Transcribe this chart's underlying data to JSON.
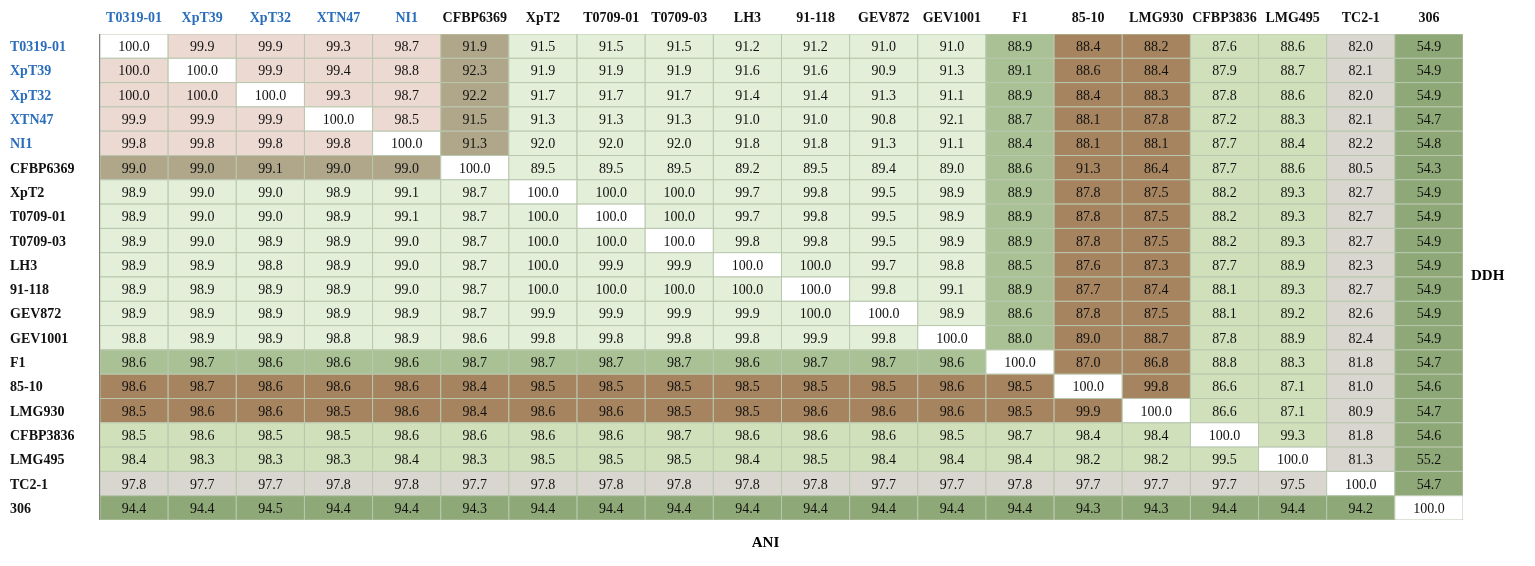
{
  "chart_data": {
    "type": "heatmap",
    "xlabel": "ANI",
    "y2label": "DDH",
    "categories": [
      "T0319-01",
      "XpT39",
      "XpT32",
      "XTN47",
      "NI1",
      "CFBP6369",
      "XpT2",
      "T0709-01",
      "T0709-03",
      "LH3",
      "91-118",
      "GEV872",
      "GEV1001",
      "F1",
      "85-10",
      "LMG930",
      "CFBP3836",
      "LMG495",
      "TC2-1",
      "306"
    ],
    "y_categories": [
      "T0319-01",
      "XpT39",
      "XpT32",
      "XTN47",
      "NI1",
      "CFBP6369",
      "XpT2",
      "T0709-01",
      "T0709-03",
      "LH3",
      "91-118",
      "GEV872",
      "GEV1001",
      "F1",
      "85-10",
      "LMG930",
      "CFBP3836",
      "LMG495",
      "TC2-1",
      "306"
    ],
    "data_labels": true,
    "cells": [
      [
        100.0,
        99.9,
        99.9,
        99.3,
        98.7,
        91.9,
        91.5,
        91.5,
        91.5,
        91.2,
        91.2,
        91.0,
        91.0,
        88.9,
        88.4,
        88.2,
        87.6,
        88.6,
        82.0,
        54.9
      ],
      [
        100.0,
        100.0,
        99.9,
        99.4,
        98.8,
        92.3,
        91.9,
        91.9,
        91.9,
        91.6,
        91.6,
        90.9,
        91.3,
        89.1,
        88.6,
        88.4,
        87.9,
        88.7,
        82.1,
        54.9
      ],
      [
        100.0,
        100.0,
        100.0,
        99.3,
        98.7,
        92.2,
        91.7,
        91.7,
        91.7,
        91.4,
        91.4,
        91.3,
        91.1,
        88.9,
        88.4,
        88.3,
        87.8,
        88.6,
        82.0,
        54.9
      ],
      [
        99.9,
        99.9,
        99.9,
        100.0,
        98.5,
        91.5,
        91.3,
        91.3,
        91.3,
        91.0,
        91.0,
        90.8,
        92.1,
        88.7,
        88.1,
        87.8,
        87.2,
        88.3,
        82.1,
        54.7
      ],
      [
        99.8,
        99.8,
        99.8,
        99.8,
        100.0,
        91.3,
        92.0,
        92.0,
        92.0,
        91.8,
        91.8,
        91.3,
        91.1,
        88.4,
        88.1,
        88.1,
        87.7,
        88.4,
        82.2,
        54.8
      ],
      [
        99.0,
        99.0,
        99.1,
        99.0,
        99.0,
        100.0,
        89.5,
        89.5,
        89.5,
        89.2,
        89.5,
        89.4,
        89.0,
        88.6,
        91.3,
        86.4,
        87.7,
        88.6,
        80.5,
        54.3
      ],
      [
        98.9,
        99.0,
        99.0,
        98.9,
        99.1,
        98.7,
        100.0,
        100.0,
        100.0,
        99.7,
        99.8,
        99.5,
        98.9,
        88.9,
        87.8,
        87.5,
        88.2,
        89.3,
        82.7,
        54.9
      ],
      [
        98.9,
        99.0,
        99.0,
        98.9,
        99.1,
        98.7,
        100.0,
        100.0,
        100.0,
        99.7,
        99.8,
        99.5,
        98.9,
        88.9,
        87.8,
        87.5,
        88.2,
        89.3,
        82.7,
        54.9
      ],
      [
        98.9,
        99.0,
        98.9,
        98.9,
        99.0,
        98.7,
        100.0,
        100.0,
        100.0,
        99.8,
        99.8,
        99.5,
        98.9,
        88.9,
        87.8,
        87.5,
        88.2,
        89.3,
        82.7,
        54.9
      ],
      [
        98.9,
        98.9,
        98.8,
        98.9,
        99.0,
        98.7,
        100.0,
        99.9,
        99.9,
        100.0,
        100.0,
        99.7,
        98.8,
        88.5,
        87.6,
        87.3,
        87.7,
        88.9,
        82.3,
        54.9
      ],
      [
        98.9,
        98.9,
        98.9,
        98.9,
        99.0,
        98.7,
        100.0,
        100.0,
        100.0,
        100.0,
        100.0,
        99.8,
        99.1,
        88.9,
        87.7,
        87.4,
        88.1,
        89.3,
        82.7,
        54.9
      ],
      [
        98.9,
        98.9,
        98.9,
        98.9,
        98.9,
        98.7,
        99.9,
        99.9,
        99.9,
        99.9,
        100.0,
        100.0,
        98.9,
        88.6,
        87.8,
        87.5,
        88.1,
        89.2,
        82.6,
        54.9
      ],
      [
        98.8,
        98.9,
        98.9,
        98.8,
        98.9,
        98.6,
        99.8,
        99.8,
        99.8,
        99.8,
        99.9,
        99.8,
        100.0,
        88.0,
        89.0,
        88.7,
        87.8,
        88.9,
        82.4,
        54.9
      ],
      [
        98.6,
        98.7,
        98.6,
        98.6,
        98.6,
        98.7,
        98.7,
        98.7,
        98.7,
        98.6,
        98.7,
        98.7,
        98.6,
        100.0,
        87.0,
        86.8,
        88.8,
        88.3,
        81.8,
        54.7
      ],
      [
        98.6,
        98.7,
        98.6,
        98.6,
        98.6,
        98.4,
        98.5,
        98.5,
        98.5,
        98.5,
        98.5,
        98.5,
        98.6,
        98.5,
        100.0,
        99.8,
        86.6,
        87.1,
        81.0,
        54.6
      ],
      [
        98.5,
        98.6,
        98.6,
        98.5,
        98.6,
        98.4,
        98.6,
        98.6,
        98.5,
        98.5,
        98.6,
        98.6,
        98.6,
        98.5,
        99.9,
        100.0,
        86.6,
        87.1,
        80.9,
        54.7
      ],
      [
        98.5,
        98.6,
        98.5,
        98.5,
        98.6,
        98.6,
        98.6,
        98.6,
        98.7,
        98.6,
        98.6,
        98.6,
        98.5,
        98.7,
        98.4,
        98.4,
        100.0,
        99.3,
        81.8,
        54.6
      ],
      [
        98.4,
        98.3,
        98.3,
        98.3,
        98.4,
        98.3,
        98.5,
        98.5,
        98.5,
        98.4,
        98.5,
        98.4,
        98.4,
        98.4,
        98.2,
        98.2,
        99.5,
        100.0,
        81.3,
        55.2
      ],
      [
        97.8,
        97.7,
        97.7,
        97.8,
        97.8,
        97.7,
        97.8,
        97.8,
        97.8,
        97.8,
        97.8,
        97.7,
        97.7,
        97.8,
        97.7,
        97.7,
        97.7,
        97.5,
        100.0,
        54.7
      ],
      [
        94.4,
        94.4,
        94.5,
        94.4,
        94.4,
        94.3,
        94.4,
        94.4,
        94.4,
        94.4,
        94.4,
        94.4,
        94.4,
        94.4,
        94.3,
        94.3,
        94.4,
        94.4,
        94.2,
        100.0
      ]
    ],
    "cell_labels": [
      [
        "100.0",
        "99.9",
        "99.9",
        "99.3",
        "98.7",
        "91.9",
        "91.5",
        "91.5",
        "91.5",
        "91.2",
        "91.2",
        "91.0",
        "91.0",
        "88.9",
        "88.4",
        "88.2",
        "87.6",
        "88.6",
        "82.0",
        "54.9"
      ],
      [
        "100.0",
        "100.0",
        "99.9",
        "99.4",
        "98.8",
        "92.3",
        "91.9",
        "91.9",
        "91.9",
        "91.6",
        "91.6",
        "90.9",
        "91.3",
        "89.1",
        "88.6",
        "88.4",
        "87.9",
        "88.7",
        "82.1",
        "54.9"
      ],
      [
        "100.0",
        "100.0",
        "100.0",
        "99.3",
        "98.7",
        "92.2",
        "91.7",
        "91.7",
        "91.7",
        "91.4",
        "91.4",
        "91.3",
        "91.1",
        "88.9",
        "88.4",
        "88.3",
        "87.8",
        "88.6",
        "82.0",
        "54.9"
      ],
      [
        "99.9",
        "99.9",
        "99.9",
        "100.0",
        "98.5",
        "91.5",
        "91.3",
        "91.3",
        "91.3",
        "91.0",
        "91.0",
        "90.8",
        "92.1",
        "88.7",
        "88.1",
        "87.8",
        "87.2",
        "88.3",
        "82.1",
        "54.7"
      ],
      [
        "99.8",
        "99.8",
        "99.8",
        "99.8",
        "100.0",
        "91.3",
        "92.0",
        "92.0",
        "92.0",
        "91.8",
        "91.8",
        "91.3",
        "91.1",
        "88.4",
        "88.1",
        "88.1",
        "87.7",
        "88.4",
        "82.2",
        "54.8"
      ],
      [
        "99.0",
        "99.0",
        "99.1",
        "99.0",
        "99.0",
        "100.0",
        "89.5",
        "89.5",
        "89.5",
        "89.2",
        "89.5",
        "89.4",
        "89.0",
        "88.6",
        "91.3",
        "86.4",
        "87.7",
        "88.6",
        "80.5",
        "54.3"
      ],
      [
        "98.9",
        "99.0",
        "99.0",
        "98.9",
        "99.1",
        "98.7",
        "100.0",
        "100.0",
        "100.0",
        "99.7",
        "99.8",
        "99.5",
        "98.9",
        "88.9",
        "87.8",
        "87.5",
        "88.2",
        "89.3",
        "82.7",
        "54.9"
      ],
      [
        "98.9",
        "99.0",
        "99.0",
        "98.9",
        "99.1",
        "98.7",
        "100.0",
        "100.0",
        "100.0",
        "99.7",
        "99.8",
        "99.5",
        "98.9",
        "88.9",
        "87.8",
        "87.5",
        "88.2",
        "89.3",
        "82.7",
        "54.9"
      ],
      [
        "98.9",
        "99.0",
        "98.9",
        "98.9",
        "99.0",
        "98.7",
        "100.0",
        "100.0",
        "100.0",
        "99.8",
        "99.8",
        "99.5",
        "98.9",
        "88.9",
        "87.8",
        "87.5",
        "88.2",
        "89.3",
        "82.7",
        "54.9"
      ],
      [
        "98.9",
        "98.9",
        "98.8",
        "98.9",
        "99.0",
        "98.7",
        "100.0",
        "99.9",
        "99.9",
        "100.0",
        "100.0",
        "99.7",
        "98.8",
        "88.5",
        "87.6",
        "87.3",
        "87.7",
        "88.9",
        "82.3",
        "54.9"
      ],
      [
        "98.9",
        "98.9",
        "98.9",
        "98.9",
        "99.0",
        "98.7",
        "100.0",
        "100.0",
        "100.0",
        "100.0",
        "100.0",
        "99.8",
        "99.1",
        "88.9",
        "87.7",
        "87.4",
        "88.1",
        "89.3",
        "82.7",
        "54.9"
      ],
      [
        "98.9",
        "98.9",
        "98.9",
        "98.9",
        "98.9",
        "98.7",
        "99.9",
        "99.9",
        "99.9",
        "99.9",
        "100.0",
        "100.0",
        "98.9",
        "88.6",
        "87.8",
        "87.5",
        "88.1",
        "89.2",
        "82.6",
        "54.9"
      ],
      [
        "98.8",
        "98.9",
        "98.9",
        "98.8",
        "98.9",
        "98.6",
        "99.8",
        "99.8",
        "99.8",
        "99.8",
        "99.9",
        "99.8",
        "100.0",
        "88.0",
        "89.0",
        "88.7",
        "87.8",
        "88.9",
        "82.4",
        "54.9"
      ],
      [
        "98.6",
        "98.7",
        "98.6",
        "98.6",
        "98.6",
        "98.7",
        "98.7",
        "98.7",
        "98.7",
        "98.6",
        "98.7",
        "98.7",
        "98.6",
        "100.0",
        "87.0",
        "86.8",
        "88.8",
        "88.3",
        "81.8",
        "54.7"
      ],
      [
        "98.6",
        "98.7",
        "98.6",
        "98.6",
        "98.6",
        "98.4",
        "98.5",
        "98.5",
        "98.5",
        "98.5",
        "98.5",
        "98.5",
        "98.6",
        "98.5",
        "100.0",
        "99.8",
        "86.6",
        "87.1",
        "81.0",
        "54.6"
      ],
      [
        "98.5",
        "98.6",
        "98.6",
        "98.5",
        "98.6",
        "98.4",
        "98.6",
        "98.6",
        "98.5",
        "98.5",
        "98.6",
        "98.6",
        "98.6",
        "98.5",
        "99.9",
        "100.0",
        "86.6",
        "87.1",
        "80.9",
        "54.7"
      ],
      [
        "98.5",
        "98.6",
        "98.5",
        "98.5",
        "98.6",
        "98.6",
        "98.6",
        "98.6",
        "98.7",
        "98.6",
        "98.6",
        "98.6",
        "98.5",
        "98.7",
        "98.4",
        "98.4",
        "100.0",
        "99.3",
        "81.8",
        "54.6"
      ],
      [
        "98.4",
        "98.3",
        "98.3",
        "98.3",
        "98.4",
        "98.3",
        "98.5",
        "98.5",
        "98.5",
        "98.4",
        "98.5",
        "98.4",
        "98.4",
        "98.4",
        "98.2",
        "98.2",
        "99.5",
        "100.0",
        "81.3",
        "55.2"
      ],
      [
        "97.8",
        "97.7",
        "97.7",
        "97.8",
        "97.8",
        "97.7",
        "97.8",
        "97.8",
        "97.8",
        "97.8",
        "97.8",
        "97.7",
        "97.7",
        "97.8",
        "97.7",
        "97.7",
        "97.7",
        "97.5",
        "100.0",
        "54.7"
      ],
      [
        "94.4",
        "94.4",
        "94.5",
        "94.4",
        "94.4",
        "94.3",
        "94.4",
        "94.4",
        "94.4",
        "94.4",
        "94.4",
        "94.4",
        "94.4",
        "94.4",
        "94.3",
        "94.3",
        "94.4",
        "94.4",
        "94.2",
        "100.0"
      ]
    ],
    "colors": [
      [
        "#ffffff",
        "#ecd9d1",
        "#ecd9d1",
        "#ecd9d1",
        "#ecd9d1",
        "#b0a78a",
        "#e4efd9",
        "#e4efd9",
        "#e4efd9",
        "#e4efd9",
        "#e4efd9",
        "#e4efd9",
        "#e4efd9",
        "#a9c194",
        "#a6845f",
        "#a6845f",
        "#cfe0bb",
        "#cfe0bb",
        "#d9d6cf",
        "#8fa877"
      ],
      [
        "#ecd9d1",
        "#ffffff",
        "#ecd9d1",
        "#ecd9d1",
        "#ecd9d1",
        "#b0a78a",
        "#e4efd9",
        "#e4efd9",
        "#e4efd9",
        "#e4efd9",
        "#e4efd9",
        "#e4efd9",
        "#e4efd9",
        "#a9c194",
        "#a6845f",
        "#a6845f",
        "#cfe0bb",
        "#cfe0bb",
        "#d9d6cf",
        "#8fa877"
      ],
      [
        "#ecd9d1",
        "#ecd9d1",
        "#ffffff",
        "#ecd9d1",
        "#ecd9d1",
        "#b0a78a",
        "#e4efd9",
        "#e4efd9",
        "#e4efd9",
        "#e4efd9",
        "#e4efd9",
        "#e4efd9",
        "#e4efd9",
        "#a9c194",
        "#a6845f",
        "#a6845f",
        "#cfe0bb",
        "#cfe0bb",
        "#d9d6cf",
        "#8fa877"
      ],
      [
        "#ecd9d1",
        "#ecd9d1",
        "#ecd9d1",
        "#ffffff",
        "#ecd9d1",
        "#b0a78a",
        "#e4efd9",
        "#e4efd9",
        "#e4efd9",
        "#e4efd9",
        "#e4efd9",
        "#e4efd9",
        "#e4efd9",
        "#a9c194",
        "#a6845f",
        "#a6845f",
        "#cfe0bb",
        "#cfe0bb",
        "#d9d6cf",
        "#8fa877"
      ],
      [
        "#ecd9d1",
        "#ecd9d1",
        "#ecd9d1",
        "#ecd9d1",
        "#ffffff",
        "#b0a78a",
        "#e4efd9",
        "#e4efd9",
        "#e4efd9",
        "#e4efd9",
        "#e4efd9",
        "#e4efd9",
        "#e4efd9",
        "#a9c194",
        "#a6845f",
        "#a6845f",
        "#cfe0bb",
        "#cfe0bb",
        "#d9d6cf",
        "#8fa877"
      ],
      [
        "#b0a78a",
        "#b0a78a",
        "#b0a78a",
        "#b0a78a",
        "#b0a78a",
        "#ffffff",
        "#e4efd9",
        "#e4efd9",
        "#e4efd9",
        "#e4efd9",
        "#e4efd9",
        "#e4efd9",
        "#e4efd9",
        "#a9c194",
        "#a6845f",
        "#a6845f",
        "#cfe0bb",
        "#cfe0bb",
        "#d9d6cf",
        "#8fa877"
      ],
      [
        "#e4efd9",
        "#e4efd9",
        "#e4efd9",
        "#e4efd9",
        "#e4efd9",
        "#e4efd9",
        "#ffffff",
        "#e4efd9",
        "#e4efd9",
        "#e4efd9",
        "#e4efd9",
        "#e4efd9",
        "#e4efd9",
        "#a9c194",
        "#a6845f",
        "#a6845f",
        "#cfe0bb",
        "#cfe0bb",
        "#d9d6cf",
        "#8fa877"
      ],
      [
        "#e4efd9",
        "#e4efd9",
        "#e4efd9",
        "#e4efd9",
        "#e4efd9",
        "#e4efd9",
        "#e4efd9",
        "#ffffff",
        "#e4efd9",
        "#e4efd9",
        "#e4efd9",
        "#e4efd9",
        "#e4efd9",
        "#a9c194",
        "#a6845f",
        "#a6845f",
        "#cfe0bb",
        "#cfe0bb",
        "#d9d6cf",
        "#8fa877"
      ],
      [
        "#e4efd9",
        "#e4efd9",
        "#e4efd9",
        "#e4efd9",
        "#e4efd9",
        "#e4efd9",
        "#e4efd9",
        "#e4efd9",
        "#ffffff",
        "#e4efd9",
        "#e4efd9",
        "#e4efd9",
        "#e4efd9",
        "#a9c194",
        "#a6845f",
        "#a6845f",
        "#cfe0bb",
        "#cfe0bb",
        "#d9d6cf",
        "#8fa877"
      ],
      [
        "#e4efd9",
        "#e4efd9",
        "#e4efd9",
        "#e4efd9",
        "#e4efd9",
        "#e4efd9",
        "#e4efd9",
        "#e4efd9",
        "#e4efd9",
        "#ffffff",
        "#e4efd9",
        "#e4efd9",
        "#e4efd9",
        "#a9c194",
        "#a6845f",
        "#a6845f",
        "#cfe0bb",
        "#cfe0bb",
        "#d9d6cf",
        "#8fa877"
      ],
      [
        "#e4efd9",
        "#e4efd9",
        "#e4efd9",
        "#e4efd9",
        "#e4efd9",
        "#e4efd9",
        "#e4efd9",
        "#e4efd9",
        "#e4efd9",
        "#e4efd9",
        "#ffffff",
        "#e4efd9",
        "#e4efd9",
        "#a9c194",
        "#a6845f",
        "#a6845f",
        "#cfe0bb",
        "#cfe0bb",
        "#d9d6cf",
        "#8fa877"
      ],
      [
        "#e4efd9",
        "#e4efd9",
        "#e4efd9",
        "#e4efd9",
        "#e4efd9",
        "#e4efd9",
        "#e4efd9",
        "#e4efd9",
        "#e4efd9",
        "#e4efd9",
        "#e4efd9",
        "#ffffff",
        "#e4efd9",
        "#a9c194",
        "#a6845f",
        "#a6845f",
        "#cfe0bb",
        "#cfe0bb",
        "#d9d6cf",
        "#8fa877"
      ],
      [
        "#e4efd9",
        "#e4efd9",
        "#e4efd9",
        "#e4efd9",
        "#e4efd9",
        "#e4efd9",
        "#e4efd9",
        "#e4efd9",
        "#e4efd9",
        "#e4efd9",
        "#e4efd9",
        "#e4efd9",
        "#ffffff",
        "#a9c194",
        "#a6845f",
        "#a6845f",
        "#cfe0bb",
        "#cfe0bb",
        "#d9d6cf",
        "#8fa877"
      ],
      [
        "#a9c194",
        "#a9c194",
        "#a9c194",
        "#a9c194",
        "#a9c194",
        "#a9c194",
        "#a9c194",
        "#a9c194",
        "#a9c194",
        "#a9c194",
        "#a9c194",
        "#a9c194",
        "#a9c194",
        "#ffffff",
        "#a6845f",
        "#a6845f",
        "#cfe0bb",
        "#cfe0bb",
        "#d9d6cf",
        "#8fa877"
      ],
      [
        "#a6845f",
        "#a6845f",
        "#a6845f",
        "#a6845f",
        "#a6845f",
        "#a6845f",
        "#a6845f",
        "#a6845f",
        "#a6845f",
        "#a6845f",
        "#a6845f",
        "#a6845f",
        "#a6845f",
        "#a6845f",
        "#ffffff",
        "#a6845f",
        "#cfe0bb",
        "#cfe0bb",
        "#d9d6cf",
        "#8fa877"
      ],
      [
        "#a6845f",
        "#a6845f",
        "#a6845f",
        "#a6845f",
        "#a6845f",
        "#a6845f",
        "#a6845f",
        "#a6845f",
        "#a6845f",
        "#a6845f",
        "#a6845f",
        "#a6845f",
        "#a6845f",
        "#a6845f",
        "#a6845f",
        "#ffffff",
        "#cfe0bb",
        "#cfe0bb",
        "#d9d6cf",
        "#8fa877"
      ],
      [
        "#cfe0bb",
        "#cfe0bb",
        "#cfe0bb",
        "#cfe0bb",
        "#cfe0bb",
        "#cfe0bb",
        "#cfe0bb",
        "#cfe0bb",
        "#cfe0bb",
        "#cfe0bb",
        "#cfe0bb",
        "#cfe0bb",
        "#cfe0bb",
        "#cfe0bb",
        "#cfe0bb",
        "#cfe0bb",
        "#ffffff",
        "#cfe0bb",
        "#d9d6cf",
        "#8fa877"
      ],
      [
        "#cfe0bb",
        "#cfe0bb",
        "#cfe0bb",
        "#cfe0bb",
        "#cfe0bb",
        "#cfe0bb",
        "#cfe0bb",
        "#cfe0bb",
        "#cfe0bb",
        "#cfe0bb",
        "#cfe0bb",
        "#cfe0bb",
        "#cfe0bb",
        "#cfe0bb",
        "#cfe0bb",
        "#cfe0bb",
        "#cfe0bb",
        "#ffffff",
        "#d9d6cf",
        "#8fa877"
      ],
      [
        "#d9d6cf",
        "#d9d6cf",
        "#d9d6cf",
        "#d9d6cf",
        "#d9d6cf",
        "#d9d6cf",
        "#d9d6cf",
        "#d9d6cf",
        "#d9d6cf",
        "#d9d6cf",
        "#d9d6cf",
        "#d9d6cf",
        "#d9d6cf",
        "#d9d6cf",
        "#d9d6cf",
        "#d9d6cf",
        "#d9d6cf",
        "#d9d6cf",
        "#ffffff",
        "#8fa877"
      ],
      [
        "#8fa877",
        "#8fa877",
        "#8fa877",
        "#8fa877",
        "#8fa877",
        "#8fa877",
        "#8fa877",
        "#8fa877",
        "#8fa877",
        "#8fa877",
        "#8fa877",
        "#8fa877",
        "#8fa877",
        "#8fa877",
        "#8fa877",
        "#8fa877",
        "#8fa877",
        "#8fa877",
        "#8fa877",
        "#ffffff"
      ]
    ]
  }
}
